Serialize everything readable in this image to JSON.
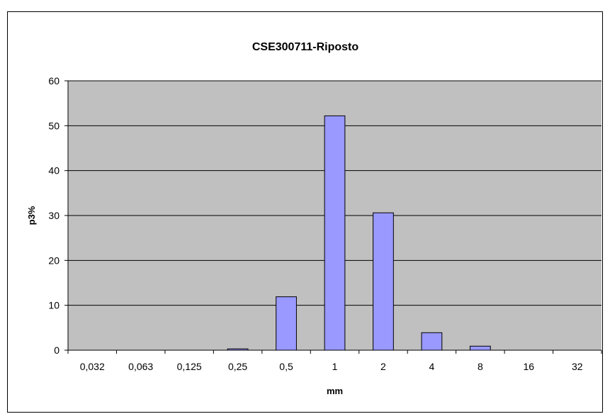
{
  "chart_data": {
    "type": "bar",
    "title": "CSE300711-Riposto",
    "xlabel": "mm",
    "ylabel": "p3%",
    "categories": [
      "0,032",
      "0,063",
      "0,125",
      "0,25",
      "0,5",
      "1",
      "2",
      "4",
      "8",
      "16",
      "32"
    ],
    "values": [
      0,
      0,
      0,
      0.3,
      11.9,
      52.2,
      30.6,
      3.9,
      0.9,
      0,
      0
    ],
    "ylim": [
      0,
      60
    ],
    "yticks": [
      0,
      10,
      20,
      30,
      40,
      50,
      60
    ],
    "grid": true,
    "legend": "none",
    "colors": {
      "plot_background": "#c0c0c0",
      "bar_fill": "#9999ff",
      "bar_stroke": "#000000",
      "gridline": "#000000"
    }
  }
}
